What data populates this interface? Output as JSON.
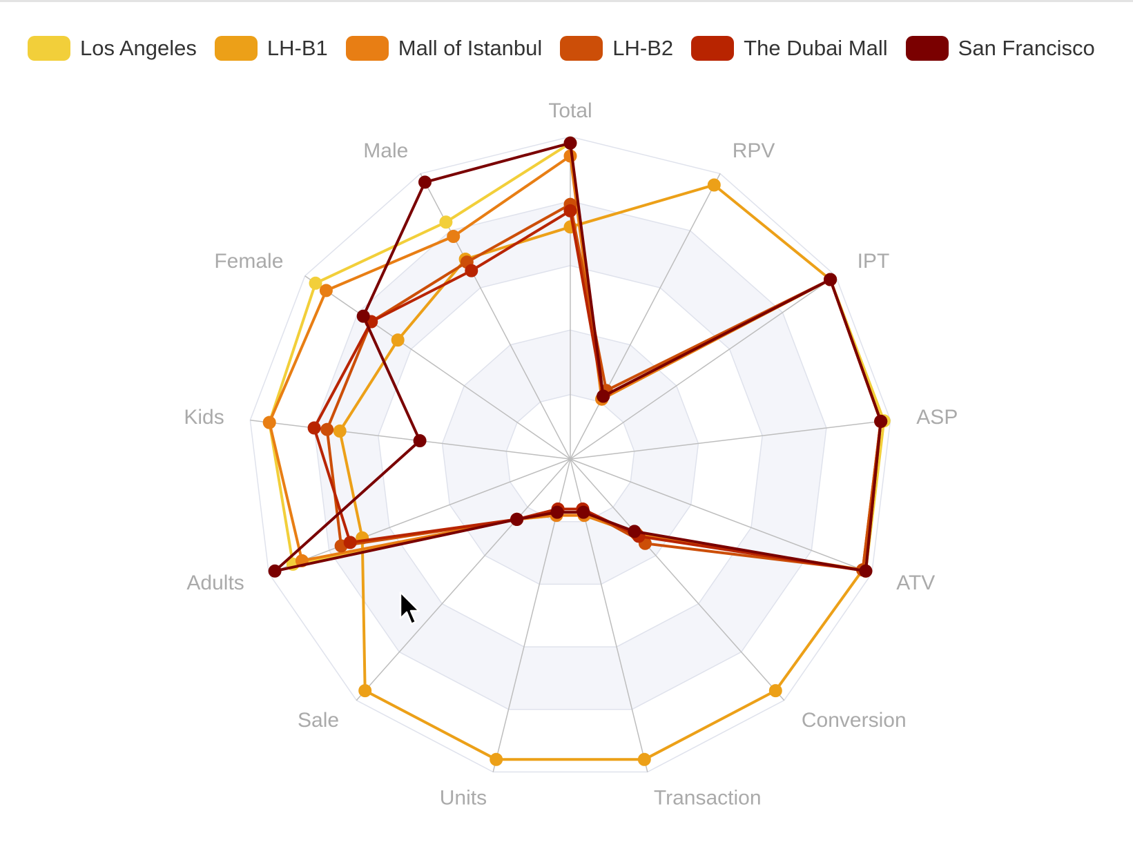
{
  "chart_data": {
    "type": "radar",
    "indicators": [
      "Total",
      "RPV",
      "IPT",
      "ASP",
      "ATV",
      "Conversion",
      "Transaction",
      "Units",
      "Sale",
      "Adults",
      "Kids",
      "Female",
      "Male"
    ],
    "max": 100,
    "split_number": 5,
    "legend_position": "top",
    "series": [
      {
        "name": "Los Angeles",
        "color": "#f2cf3a",
        "values": [
          98,
          21,
          98,
          98,
          98,
          31,
          18,
          18,
          25,
          92,
          94,
          96,
          83
        ]
      },
      {
        "name": "LH-B1",
        "color": "#eca018",
        "values": [
          72,
          96,
          98,
          97,
          97,
          96,
          96,
          96,
          96,
          69,
          72,
          65,
          70
        ]
      },
      {
        "name": "Mall of Istanbul",
        "color": "#e87e14",
        "values": [
          94,
          21,
          98,
          97,
          97,
          31,
          18,
          18,
          25,
          89,
          94,
          92,
          78
        ]
      },
      {
        "name": "LH-B2",
        "color": "#cc4e08",
        "values": [
          79,
          24,
          98,
          97,
          97,
          35,
          16,
          16,
          25,
          76,
          76,
          75,
          69
        ]
      },
      {
        "name": "The Dubai Mall",
        "color": "#b82400",
        "values": [
          77,
          22,
          98,
          97,
          98,
          32,
          16,
          16,
          25,
          73,
          80,
          75,
          66
        ]
      },
      {
        "name": "San Francisco",
        "color": "#7a0000",
        "values": [
          98,
          22,
          98,
          97,
          98,
          30,
          17,
          17,
          25,
          98,
          47,
          78,
          97
        ]
      }
    ]
  },
  "cursor": {
    "icon": "mouse-pointer-icon"
  }
}
